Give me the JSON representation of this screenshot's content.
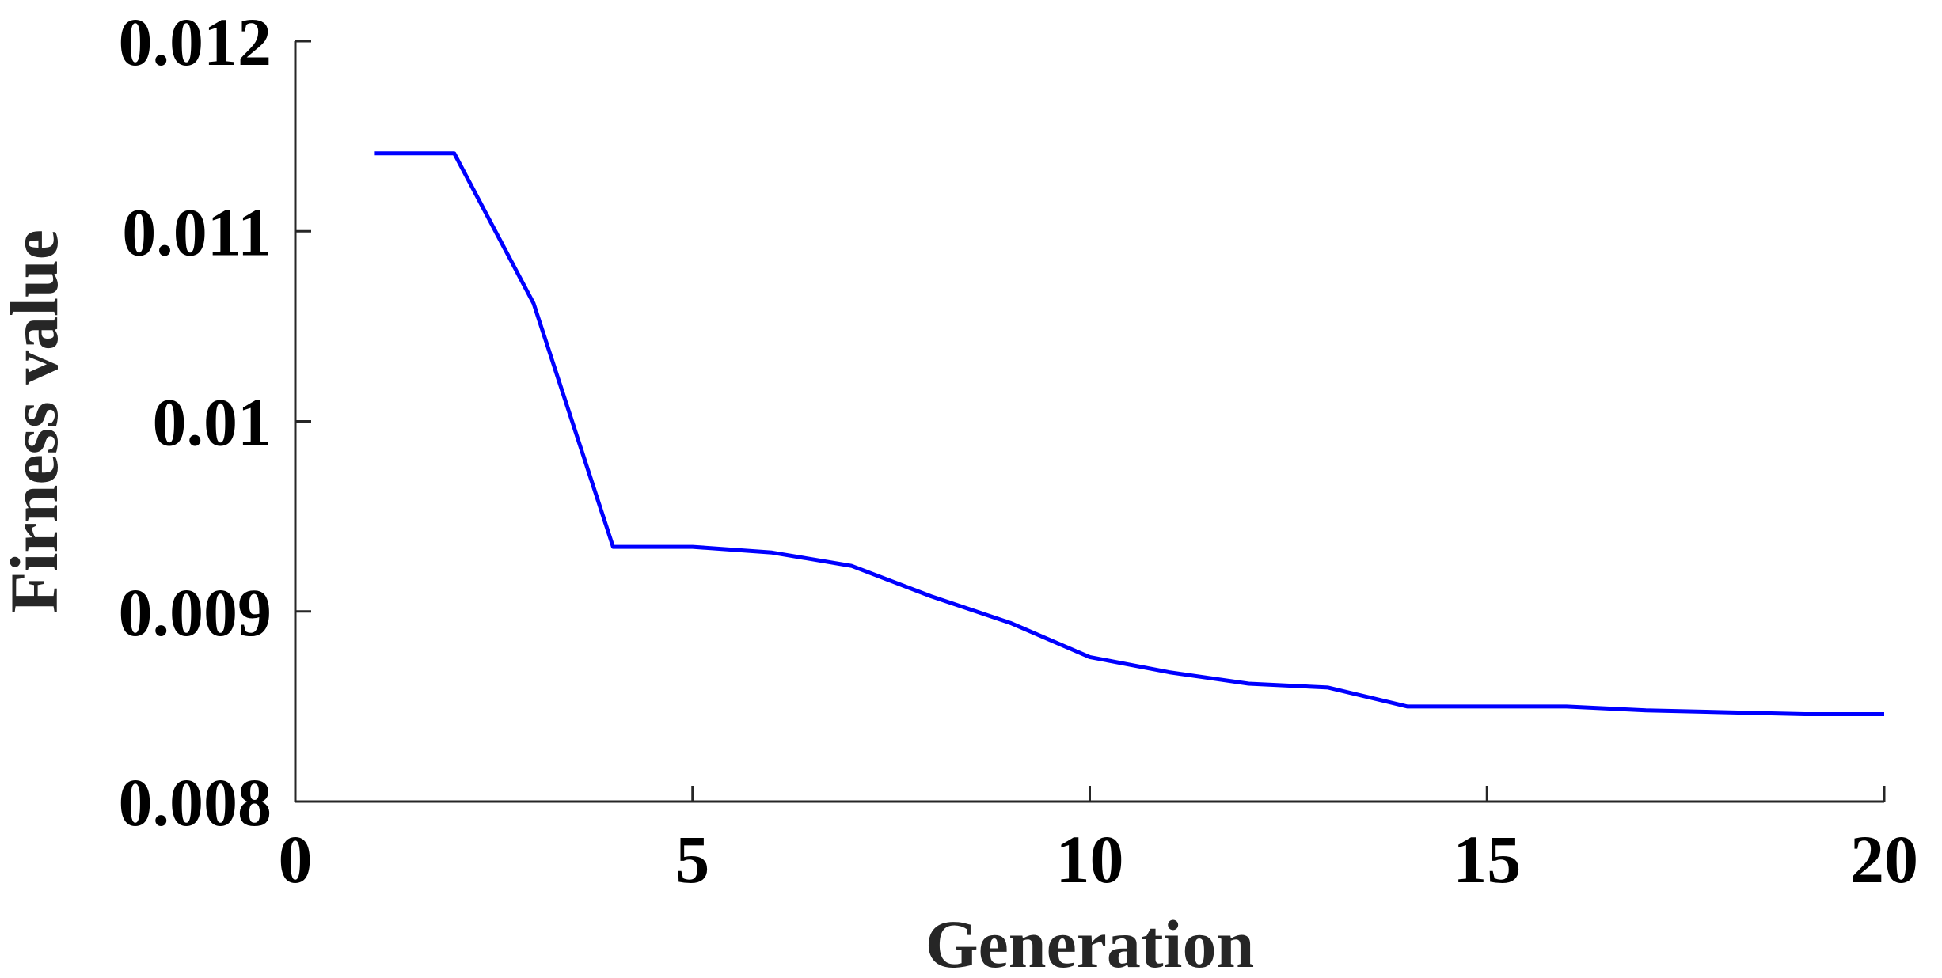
{
  "chart_data": {
    "type": "line",
    "title": "",
    "xlabel": "Generation",
    "ylabel": "Firness value",
    "xlim": [
      0,
      20
    ],
    "ylim": [
      0.008,
      0.012
    ],
    "xticks": [
      0,
      5,
      10,
      15,
      20
    ],
    "xtick_labels": [
      "0",
      "5",
      "10",
      "15",
      "20"
    ],
    "yticks": [
      0.008,
      0.009,
      0.01,
      0.011,
      0.012
    ],
    "ytick_labels": [
      "0.008",
      "0.009",
      "0.01",
      "0.011",
      "0.012"
    ],
    "grid": false,
    "legend": false,
    "series": [
      {
        "color": "#0000ff",
        "x": [
          1,
          2,
          3,
          4,
          5,
          6,
          7,
          8,
          9,
          10,
          11,
          12,
          13,
          14,
          15,
          16,
          17,
          18,
          19,
          20
        ],
        "y": [
          0.01141,
          0.01141,
          0.01062,
          0.00934,
          0.00934,
          0.00931,
          0.00924,
          0.00908,
          0.00894,
          0.00876,
          0.00868,
          0.00862,
          0.0086,
          0.0085,
          0.0085,
          0.0085,
          0.00848,
          0.00847,
          0.00846,
          0.00846
        ]
      }
    ]
  }
}
